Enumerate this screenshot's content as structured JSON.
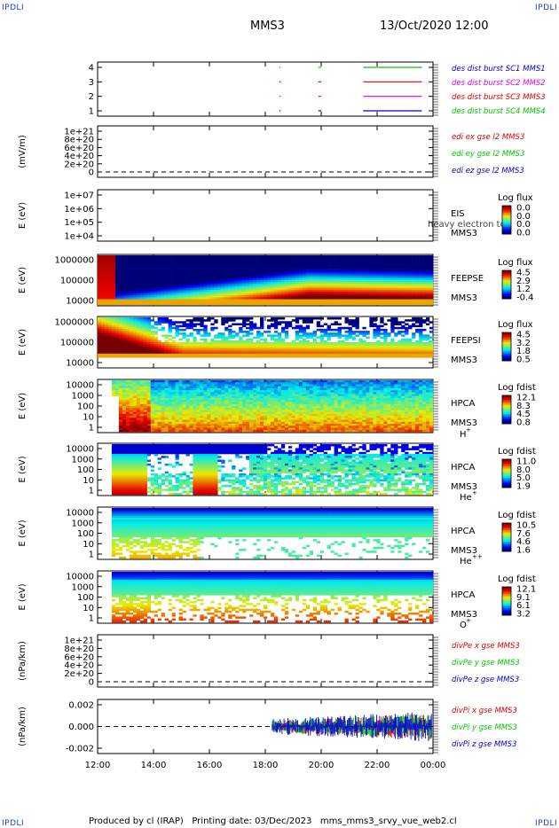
{
  "header": {
    "corner_tl": "IPDLI",
    "corner_tr": "IPDLI",
    "corner_bl": "IPDLI",
    "corner_br": "IPDLI",
    "title": "MMS3",
    "date": "13/Oct/2020 12:00"
  },
  "footer": {
    "text": "Produced by cl (IRAP)   Printing date: 03/Dec/2023   mms_mms3_srvy_vue_web2.cl"
  },
  "colors": {
    "blue": "#0000e0",
    "red": "#e00000",
    "green": "#00c800",
    "magenta": "#e000e0",
    "axis": "#000000"
  },
  "chart_data": [
    {
      "type": "line",
      "id": "burst",
      "ylabel": "",
      "yticks": [
        "4",
        "3",
        "2",
        "1"
      ],
      "ylim": [
        0.5,
        4.5
      ],
      "x_ticks": [
        "12:00",
        "14:00",
        "16:00",
        "18:00",
        "20:00",
        "22:00",
        "00:00"
      ],
      "legend": [
        {
          "label": "des dist burst SC1 MMS1",
          "color": "#0000e0"
        },
        {
          "label": "des dist burst SC2 MMS2",
          "color": "#e000e0"
        },
        {
          "label": "des dist burst SC3 MMS3",
          "color": "#e00000"
        },
        {
          "label": "des dist burst SC4 MMS4",
          "color": "#00c800"
        }
      ],
      "series": [
        {
          "level": 4,
          "color": "#00c800",
          "segments": [
            [
              18.5,
              18.55
            ],
            [
              19.9,
              20.0
            ],
            [
              21.5,
              23.6
            ]
          ]
        },
        {
          "level": 3,
          "color": "#e00000",
          "segments": [
            [
              18.5,
              18.55
            ],
            [
              19.9,
              20.0
            ],
            [
              21.5,
              23.6
            ]
          ]
        },
        {
          "level": 2,
          "color": "#e000e0",
          "segments": [
            [
              18.5,
              18.55
            ],
            [
              19.9,
              20.0
            ],
            [
              21.5,
              23.6
            ]
          ]
        },
        {
          "level": 1,
          "color": "#0000e0",
          "segments": [
            [
              18.5,
              18.55
            ],
            [
              19.9,
              20.0
            ],
            [
              21.5,
              23.6
            ]
          ]
        }
      ]
    },
    {
      "type": "line",
      "id": "edi",
      "ylabel": "(mV/m)",
      "yticks": [
        "1e+21",
        "8e+20",
        "6e+20",
        "4e+20",
        "2e+20",
        "0"
      ],
      "legend": [
        {
          "label": "edi ex gse l2 MMS3",
          "color": "#e00000"
        },
        {
          "label": "edi ey gse l2 MMS3",
          "color": "#00c800"
        },
        {
          "label": "edi ez gse l2 MMS3",
          "color": "#0000e0"
        }
      ]
    },
    {
      "type": "heatmap",
      "id": "eis",
      "ylabel": "E (eV)",
      "yticks": [
        "1e+07",
        "1e+06",
        "1e+05",
        "1e+04"
      ],
      "labels": [
        "EIS",
        "MMS3"
      ],
      "overlay": "heavy electron to",
      "cbar_title": "Log flux",
      "cbar_ticks": [
        "0.0",
        "0.0",
        "0.0",
        "0.0"
      ]
    },
    {
      "type": "heatmap",
      "id": "feepse",
      "ylabel": "E (eV)",
      "yticks": [
        "1000000",
        "100000",
        "10000"
      ],
      "labels": [
        "FEEPSE",
        "MMS3"
      ],
      "cbar_title": "Log flux",
      "cbar_ticks": [
        "4.5",
        "2.9",
        "1.2",
        "-0.4"
      ]
    },
    {
      "type": "heatmap",
      "id": "feepsi",
      "ylabel": "E (eV)",
      "yticks": [
        "1000000",
        "100000",
        "10000"
      ],
      "labels": [
        "FEEPSI",
        "MMS3"
      ],
      "cbar_title": "Log flux",
      "cbar_ticks": [
        "4.5",
        "3.2",
        "1.8",
        "0.5"
      ]
    },
    {
      "type": "heatmap",
      "id": "hpca-h",
      "ylabel": "E (eV)",
      "yticks": [
        "10000",
        "1000",
        "100",
        "10",
        "1"
      ],
      "labels": [
        "HPCA",
        "MMS3"
      ],
      "species": "H",
      "species_sup": "+",
      "cbar_title": "Log fdist",
      "cbar_ticks": [
        "12.1",
        "8.3",
        "4.5",
        "0.8"
      ]
    },
    {
      "type": "heatmap",
      "id": "hpca-he",
      "ylabel": "E (eV)",
      "yticks": [
        "10000",
        "1000",
        "100",
        "10",
        "1"
      ],
      "labels": [
        "HPCA",
        "MMS3"
      ],
      "species": "He",
      "species_sup": "+",
      "cbar_title": "Log fdist",
      "cbar_ticks": [
        "11.0",
        "8.0",
        "5.0",
        "1.9"
      ]
    },
    {
      "type": "heatmap",
      "id": "hpca-he2",
      "ylabel": "E (eV)",
      "yticks": [
        "10000",
        "1000",
        "100",
        "10",
        "1"
      ],
      "labels": [
        "HPCA",
        "MMS3"
      ],
      "species": "He",
      "species_sup": "++",
      "cbar_title": "Log fdist",
      "cbar_ticks": [
        "10.5",
        "7.6",
        "4.6",
        "1.6"
      ]
    },
    {
      "type": "heatmap",
      "id": "hpca-o",
      "ylabel": "E (eV)",
      "yticks": [
        "10000",
        "1000",
        "100",
        "10",
        "1"
      ],
      "labels": [
        "HPCA",
        "MMS3"
      ],
      "species": "O",
      "species_sup": "+",
      "cbar_title": "Log fdist",
      "cbar_ticks": [
        "12.1",
        "9.1",
        "6.1",
        "3.2"
      ]
    },
    {
      "type": "line",
      "id": "divpe",
      "ylabel": "(nPa/km)",
      "yticks": [
        "1e+21",
        "8e+20",
        "6e+20",
        "4e+20",
        "2e+20",
        "0"
      ],
      "legend": [
        {
          "label": "divPe x gse MMS3",
          "color": "#e00000"
        },
        {
          "label": "divPe y gse MMS3",
          "color": "#00c800"
        },
        {
          "label": "divPe z gse MMS3",
          "color": "#0000e0"
        }
      ]
    },
    {
      "type": "line",
      "id": "divpi",
      "ylabel": "(nPa/km)",
      "yticks": [
        "0.002",
        "0.000",
        "-0.002"
      ],
      "ylim": [
        -0.003,
        0.003
      ],
      "noise_start_hour": 18.25,
      "legend": [
        {
          "label": "divPi x gse MMS3",
          "color": "#e00000"
        },
        {
          "label": "divPi y gse MMS3",
          "color": "#00c800"
        },
        {
          "label": "divPi z gse MMS3",
          "color": "#0000e0"
        }
      ]
    }
  ],
  "x_axis": {
    "ticks": [
      "12:00",
      "14:00",
      "16:00",
      "18:00",
      "20:00",
      "22:00",
      "00:00"
    ],
    "range_hours": [
      12,
      24
    ]
  }
}
